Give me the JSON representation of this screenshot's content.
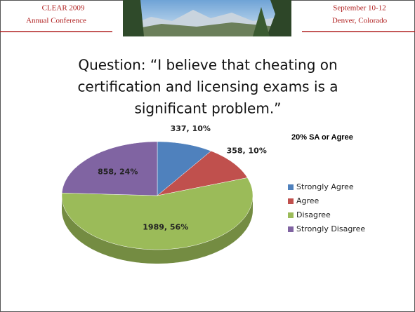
{
  "header": {
    "left": [
      "CLEAR 2009",
      "Annual Conference"
    ],
    "right": [
      "September 10-12",
      "Denver, Colorado"
    ]
  },
  "title": [
    "Question: “I believe that cheating on",
    "certification and licensing exams is a",
    "significant problem.”"
  ],
  "chart_data": {
    "type": "pie",
    "annotation": "20% SA or Agree",
    "categories": [
      "Strongly Agree",
      "Agree",
      "Disagree",
      "Strongly Disagree"
    ],
    "values": [
      337,
      358,
      1989,
      858
    ],
    "value_labels": [
      "337, 10%",
      "358, 10%",
      "1989, 56%",
      "858, 24%"
    ],
    "colors": [
      "#4f81bd",
      "#c0504d",
      "#9bbb59",
      "#8064a2"
    ],
    "legend": "right"
  }
}
